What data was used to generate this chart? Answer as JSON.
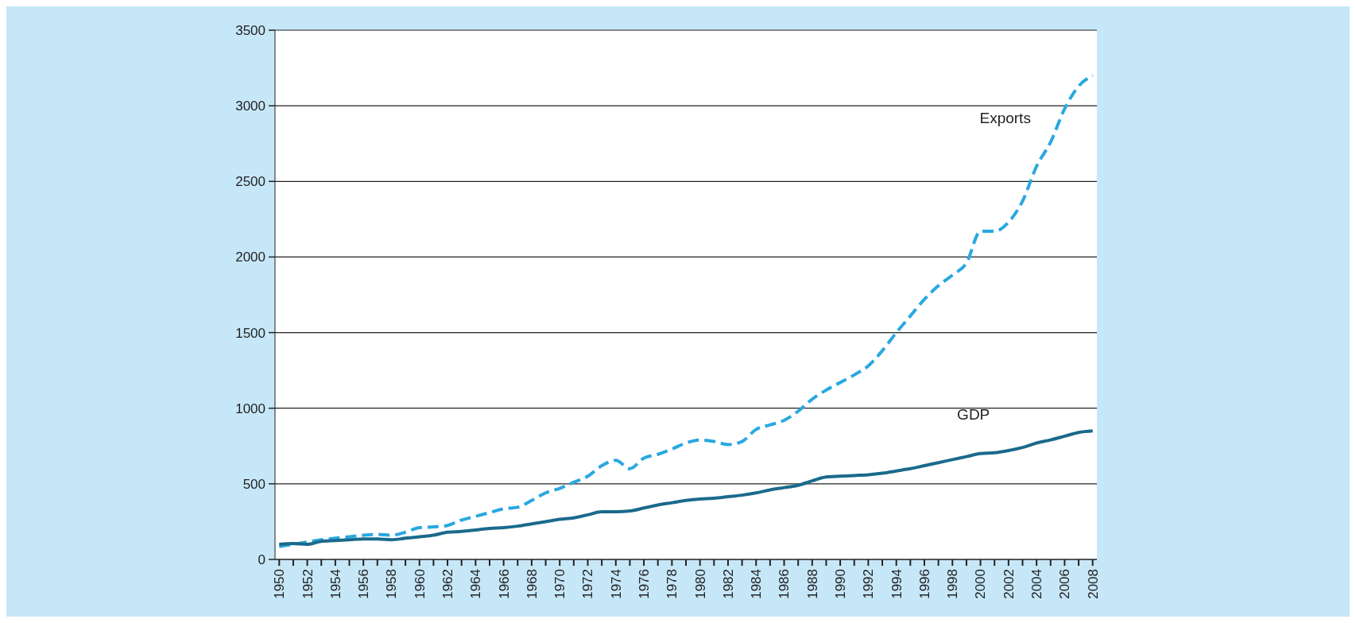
{
  "chart_data": {
    "type": "line",
    "x": [
      1950,
      1951,
      1952,
      1953,
      1954,
      1955,
      1956,
      1957,
      1958,
      1959,
      1960,
      1961,
      1962,
      1963,
      1964,
      1965,
      1966,
      1967,
      1968,
      1969,
      1970,
      1971,
      1972,
      1973,
      1974,
      1975,
      1976,
      1977,
      1978,
      1979,
      1980,
      1981,
      1982,
      1983,
      1984,
      1985,
      1986,
      1987,
      1988,
      1989,
      1990,
      1991,
      1992,
      1993,
      1994,
      1995,
      1996,
      1997,
      1998,
      1999,
      2000,
      2001,
      2002,
      2003,
      2004,
      2005,
      2006,
      2007,
      2008
    ],
    "series": [
      {
        "name": "Exports",
        "color": "#29a8e0",
        "line_style": "dashed",
        "values": [
          85,
          100,
          115,
          130,
          140,
          150,
          160,
          165,
          160,
          180,
          210,
          215,
          225,
          260,
          285,
          310,
          335,
          345,
          390,
          440,
          470,
          510,
          550,
          620,
          655,
          600,
          670,
          695,
          730,
          770,
          790,
          780,
          760,
          780,
          860,
          890,
          920,
          980,
          1060,
          1120,
          1170,
          1220,
          1280,
          1380,
          1500,
          1610,
          1720,
          1810,
          1880,
          1960,
          2170,
          2170,
          2230,
          2370,
          2600,
          2760,
          2980,
          3130,
          3200
        ]
      },
      {
        "name": "GDP",
        "color": "#1a6a8c",
        "line_style": "solid",
        "values": [
          100,
          105,
          100,
          120,
          125,
          130,
          135,
          135,
          130,
          140,
          150,
          160,
          180,
          185,
          195,
          205,
          210,
          220,
          235,
          250,
          265,
          275,
          295,
          315,
          315,
          320,
          340,
          360,
          375,
          390,
          400,
          405,
          415,
          425,
          440,
          460,
          475,
          490,
          520,
          545,
          550,
          555,
          560,
          570,
          585,
          600,
          620,
          640,
          660,
          680,
          700,
          705,
          720,
          740,
          770,
          790,
          815,
          840,
          850
        ]
      }
    ],
    "xlim": [
      1949.7,
      2008.3
    ],
    "xticks": [
      1950,
      {
        "value": 1951,
        "label": null
      },
      1952,
      {
        "value": 1953,
        "label": null
      },
      1954,
      {
        "value": 1955,
        "label": null
      },
      1956,
      {
        "value": 1957,
        "label": null
      },
      1958,
      {
        "value": 1959,
        "label": null
      },
      1960,
      {
        "value": 1961,
        "label": null
      },
      1962,
      {
        "value": 1963,
        "label": null
      },
      1964,
      {
        "value": 1965,
        "label": null
      },
      1966,
      {
        "value": 1967,
        "label": null
      },
      1968,
      {
        "value": 1969,
        "label": null
      },
      1970,
      {
        "value": 1971,
        "label": null
      },
      1972,
      {
        "value": 1973,
        "label": null
      },
      1974,
      {
        "value": 1975,
        "label": null
      },
      1976,
      {
        "value": 1977,
        "label": null
      },
      1978,
      {
        "value": 1979,
        "label": null
      },
      1980,
      {
        "value": 1981,
        "label": null
      },
      1982,
      {
        "value": 1983,
        "label": null
      },
      1984,
      {
        "value": 1985,
        "label": null
      },
      1986,
      {
        "value": 1987,
        "label": null
      },
      1988,
      {
        "value": 1989,
        "label": null
      },
      1990,
      {
        "value": 1991,
        "label": null
      },
      1992,
      {
        "value": 1993,
        "label": null
      },
      1994,
      {
        "value": 1995,
        "label": null
      },
      1996,
      {
        "value": 1997,
        "label": null
      },
      1998,
      {
        "value": 1999,
        "label": null
      },
      2000,
      {
        "value": 2001,
        "label": null
      },
      2002,
      {
        "value": 2003,
        "label": null
      },
      2004,
      {
        "value": 2005,
        "label": null
      },
      2006,
      {
        "value": 2007,
        "label": null
      },
      2008
    ],
    "ylim": [
      0,
      3500
    ],
    "yticks": [
      0,
      500,
      1000,
      1500,
      2000,
      2500,
      3000,
      3500
    ],
    "grid": "y"
  }
}
